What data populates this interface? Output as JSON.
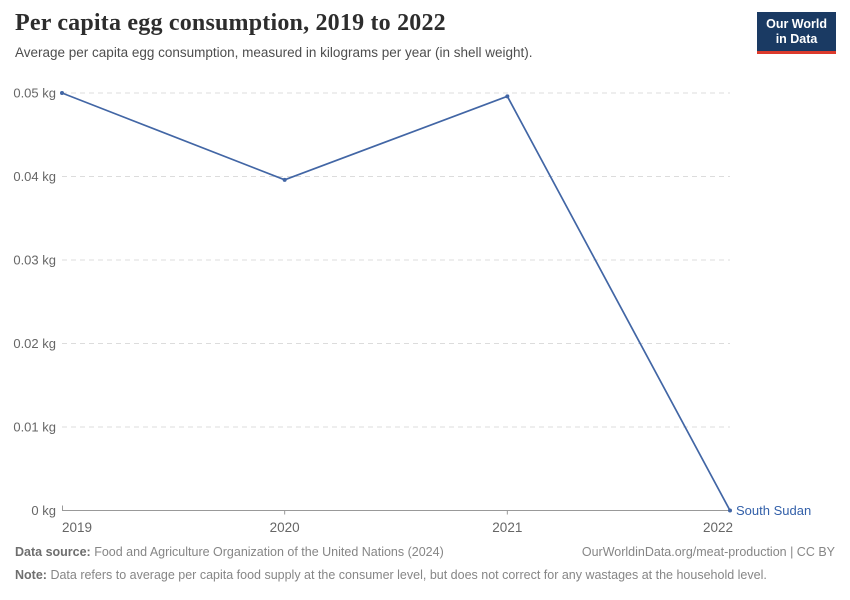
{
  "header": {
    "title": "Per capita egg consumption, 2019 to 2022",
    "subtitle": "Average per capita egg consumption, measured in kilograms per year (in shell weight)."
  },
  "logo": {
    "line1": "Our World",
    "line2": "in Data",
    "bg_color": "#1a3a63",
    "accent_color": "#dc3a2c"
  },
  "chart_data": {
    "type": "line",
    "title": "Per capita egg consumption, 2019 to 2022",
    "x": [
      2019,
      2020,
      2021,
      2022
    ],
    "series": [
      {
        "name": "South Sudan",
        "values": [
          0.05,
          0.0396,
          0.0496,
          0
        ],
        "color": "#4266a5"
      }
    ],
    "xlabel": "",
    "ylabel": "",
    "ylim": [
      0,
      0.05
    ],
    "yticks": [
      {
        "value": 0,
        "label": "0 kg"
      },
      {
        "value": 0.01,
        "label": "0.01 kg"
      },
      {
        "value": 0.02,
        "label": "0.02 kg"
      },
      {
        "value": 0.03,
        "label": "0.03 kg"
      },
      {
        "value": 0.04,
        "label": "0.04 kg"
      },
      {
        "value": 0.05,
        "label": "0.05 kg"
      }
    ],
    "xticks": [
      "2019",
      "2020",
      "2021",
      "2022"
    ],
    "grid": "horizontal dashed",
    "legend": "entity label at right end of line",
    "entity_label": "South Sudan",
    "entity_label_color": "#3360a9",
    "gridline_color": "#dcdcdc",
    "axis_color": "#999999"
  },
  "footer": {
    "source_label": "Data source:",
    "source_text": "Food and Agriculture Organization of the United Nations (2024)",
    "link_text": "OurWorldinData.org/meat-production | CC BY",
    "note_label": "Note:",
    "note_text": "Data refers to average per capita food supply at the consumer level, but does not correct for any wastages at the household level."
  }
}
